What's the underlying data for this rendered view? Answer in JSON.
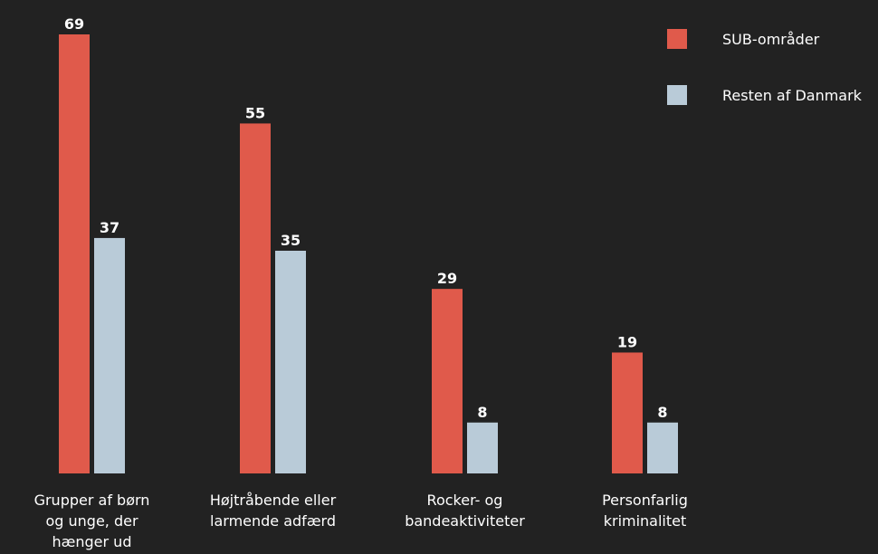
{
  "chart_data": {
    "type": "bar",
    "title": "",
    "xlabel": "",
    "ylabel": "",
    "ylim": [
      0,
      69
    ],
    "grid": false,
    "legend_position": "top-right",
    "categories": [
      [
        "Grupper af børn",
        "og unge, der",
        "hænger ud"
      ],
      [
        "Højtråbende eller",
        "larmende adfærd"
      ],
      [
        "Rocker- og",
        "bandeaktiviteter"
      ],
      [
        "Personfarlig",
        "kriminalitet"
      ]
    ],
    "series": [
      {
        "name": "SUB-områder",
        "color": "#e05a4b",
        "values": [
          69,
          55,
          29,
          19
        ]
      },
      {
        "name": "Resten af Danmark",
        "color": "#b9cbd8",
        "values": [
          37,
          35,
          8,
          8
        ]
      }
    ]
  }
}
